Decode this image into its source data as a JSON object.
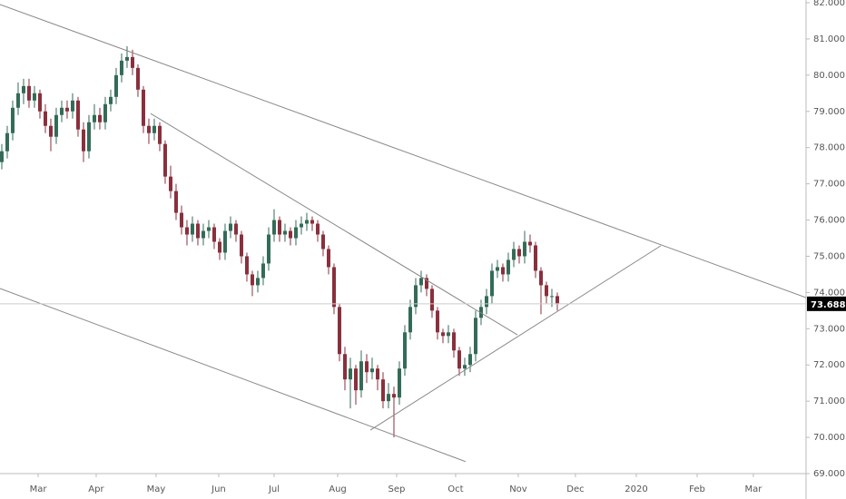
{
  "chart_data": {
    "type": "candlestick",
    "candles": [
      [
        77.6,
        78.1,
        77.4,
        77.9
      ],
      [
        77.9,
        78.6,
        77.7,
        78.4
      ],
      [
        78.4,
        79.3,
        78.2,
        79.1
      ],
      [
        79.1,
        79.8,
        78.9,
        79.5
      ],
      [
        79.5,
        79.9,
        79.2,
        79.7
      ],
      [
        79.7,
        79.9,
        79.1,
        79.3
      ],
      [
        79.3,
        79.7,
        79.1,
        79.5
      ],
      [
        79.5,
        79.6,
        78.8,
        79.0
      ],
      [
        79.0,
        79.2,
        78.4,
        78.6
      ],
      [
        78.6,
        78.8,
        77.9,
        78.3
      ],
      [
        78.3,
        79.1,
        78.1,
        78.9
      ],
      [
        78.9,
        79.3,
        78.7,
        79.1
      ],
      [
        79.1,
        79.3,
        78.8,
        79.0
      ],
      [
        79.0,
        79.5,
        78.8,
        79.3
      ],
      [
        79.3,
        79.4,
        78.3,
        78.5
      ],
      [
        78.5,
        78.7,
        77.6,
        77.9
      ],
      [
        77.9,
        78.9,
        77.7,
        78.7
      ],
      [
        78.7,
        79.2,
        78.5,
        78.9
      ],
      [
        78.9,
        79.1,
        78.5,
        78.7
      ],
      [
        78.7,
        79.4,
        78.5,
        79.2
      ],
      [
        79.2,
        79.6,
        79.0,
        79.4
      ],
      [
        79.4,
        80.2,
        79.2,
        80.0
      ],
      [
        80.0,
        80.6,
        79.8,
        80.4
      ],
      [
        80.4,
        80.8,
        80.2,
        80.5
      ],
      [
        80.5,
        80.7,
        80.0,
        80.2
      ],
      [
        80.2,
        80.3,
        79.4,
        79.6
      ],
      [
        79.6,
        79.7,
        78.4,
        78.6
      ],
      [
        78.6,
        78.8,
        78.1,
        78.4
      ],
      [
        78.4,
        78.8,
        78.2,
        78.6
      ],
      [
        78.6,
        78.7,
        77.9,
        78.1
      ],
      [
        78.1,
        78.2,
        77.0,
        77.2
      ],
      [
        77.2,
        77.5,
        76.6,
        76.8
      ],
      [
        76.8,
        77.0,
        76.0,
        76.2
      ],
      [
        76.2,
        76.4,
        75.6,
        75.8
      ],
      [
        75.8,
        76.0,
        75.3,
        75.6
      ],
      [
        75.6,
        76.1,
        75.4,
        75.9
      ],
      [
        75.9,
        76.0,
        75.3,
        75.5
      ],
      [
        75.5,
        75.9,
        75.3,
        75.7
      ],
      [
        75.7,
        76.0,
        75.5,
        75.8
      ],
      [
        75.8,
        75.9,
        75.2,
        75.4
      ],
      [
        75.4,
        75.5,
        74.9,
        75.1
      ],
      [
        75.1,
        75.9,
        74.9,
        75.7
      ],
      [
        75.7,
        76.1,
        75.5,
        75.9
      ],
      [
        75.9,
        76.0,
        75.4,
        75.6
      ],
      [
        75.6,
        75.7,
        74.8,
        75.0
      ],
      [
        75.0,
        75.1,
        74.3,
        74.5
      ],
      [
        74.5,
        74.6,
        73.9,
        74.2
      ],
      [
        74.2,
        74.6,
        74.0,
        74.4
      ],
      [
        74.4,
        75.0,
        74.2,
        74.8
      ],
      [
        74.8,
        75.8,
        74.6,
        75.6
      ],
      [
        75.6,
        76.3,
        75.4,
        76.0
      ],
      [
        76.0,
        76.1,
        75.4,
        75.6
      ],
      [
        75.6,
        75.9,
        75.4,
        75.7
      ],
      [
        75.7,
        75.8,
        75.3,
        75.5
      ],
      [
        75.5,
        76.0,
        75.3,
        75.8
      ],
      [
        75.8,
        76.1,
        75.6,
        75.9
      ],
      [
        75.9,
        76.2,
        75.7,
        76.0
      ],
      [
        76.0,
        76.1,
        75.7,
        75.9
      ],
      [
        75.9,
        76.0,
        75.4,
        75.6
      ],
      [
        75.6,
        75.7,
        75.0,
        75.2
      ],
      [
        75.2,
        75.3,
        74.5,
        74.7
      ],
      [
        74.7,
        74.8,
        73.4,
        73.6
      ],
      [
        73.6,
        73.7,
        72.1,
        72.3
      ],
      [
        72.3,
        72.5,
        71.3,
        71.6
      ],
      [
        71.6,
        72.2,
        70.8,
        71.9
      ],
      [
        71.9,
        72.0,
        70.9,
        71.3
      ],
      [
        71.3,
        72.4,
        71.1,
        72.1
      ],
      [
        72.1,
        72.3,
        71.5,
        71.8
      ],
      [
        71.8,
        72.2,
        71.6,
        71.9
      ],
      [
        71.9,
        72.0,
        71.3,
        71.6
      ],
      [
        71.6,
        71.8,
        70.8,
        71.0
      ],
      [
        71.0,
        71.5,
        70.8,
        71.2
      ],
      [
        71.2,
        71.4,
        70.0,
        71.1
      ],
      [
        71.1,
        72.1,
        70.9,
        71.9
      ],
      [
        71.9,
        73.1,
        71.7,
        72.9
      ],
      [
        72.9,
        73.8,
        72.7,
        73.6
      ],
      [
        73.6,
        74.4,
        73.4,
        74.2
      ],
      [
        74.2,
        74.6,
        74.0,
        74.4
      ],
      [
        74.4,
        74.5,
        73.9,
        74.1
      ],
      [
        74.1,
        74.2,
        73.3,
        73.5
      ],
      [
        73.5,
        73.6,
        72.7,
        72.9
      ],
      [
        72.9,
        73.0,
        72.6,
        72.8
      ],
      [
        72.8,
        73.1,
        72.6,
        72.9
      ],
      [
        72.9,
        73.0,
        72.2,
        72.4
      ],
      [
        72.4,
        72.5,
        71.7,
        71.9
      ],
      [
        71.9,
        72.2,
        71.7,
        72.0
      ],
      [
        72.0,
        72.5,
        71.8,
        72.3
      ],
      [
        72.3,
        73.5,
        72.1,
        73.3
      ],
      [
        73.3,
        73.8,
        73.1,
        73.6
      ],
      [
        73.6,
        74.1,
        73.4,
        73.9
      ],
      [
        73.9,
        74.8,
        73.7,
        74.6
      ],
      [
        74.6,
        74.9,
        74.4,
        74.7
      ],
      [
        74.7,
        74.8,
        74.3,
        74.5
      ],
      [
        74.5,
        75.1,
        74.3,
        74.9
      ],
      [
        74.9,
        75.4,
        74.7,
        75.2
      ],
      [
        75.2,
        75.3,
        74.8,
        75.0
      ],
      [
        75.0,
        75.7,
        74.8,
        75.4
      ],
      [
        75.4,
        75.6,
        75.1,
        75.3
      ],
      [
        75.3,
        75.4,
        74.4,
        74.6
      ],
      [
        74.6,
        74.7,
        73.4,
        74.2
      ],
      [
        74.2,
        74.3,
        73.7,
        73.9
      ],
      [
        73.9,
        74.1,
        73.6,
        73.9
      ],
      [
        73.9,
        74.0,
        73.5,
        73.7
      ]
    ],
    "up_color": "#336b57",
    "down_color": "#8a2f3c",
    "trendlines": [
      [
        -0.33,
        81.95,
        147.67,
        73.86
      ],
      [
        27.33,
        78.94,
        94.67,
        72.83
      ],
      [
        -0.33,
        74.11,
        85.17,
        69.33
      ],
      [
        67.67,
        70.2,
        121,
        75.29
      ]
    ],
    "last_price": 73.688,
    "xlim": [
      -0.33,
      147.67
    ],
    "xticks": [
      {
        "value": 6.67,
        "label": "Mar"
      },
      {
        "value": 17.33,
        "label": "Apr"
      },
      {
        "value": 28.33,
        "label": "May"
      },
      {
        "value": 39.83,
        "label": "Jun"
      },
      {
        "value": 50,
        "label": "Jul"
      },
      {
        "value": 61.67,
        "label": "Aug"
      },
      {
        "value": 72.5,
        "label": "Sep"
      },
      {
        "value": 83.33,
        "label": "Oct"
      },
      {
        "value": 94.83,
        "label": "Nov"
      },
      {
        "value": 105.33,
        "label": "Dec"
      },
      {
        "value": 116.5,
        "label": "2020"
      },
      {
        "value": 127.67,
        "label": "Feb"
      },
      {
        "value": 138,
        "label": "Mar"
      }
    ],
    "ylim": [
      69,
      82
    ],
    "yticks": [
      {
        "value": 69,
        "label": "69.000"
      },
      {
        "value": 70,
        "label": "70.000"
      },
      {
        "value": 71,
        "label": "71.000"
      },
      {
        "value": 72,
        "label": "72.000"
      },
      {
        "value": 73,
        "label": "73.000"
      },
      {
        "value": 74,
        "label": "74.000"
      },
      {
        "value": 75,
        "label": "75.000"
      },
      {
        "value": 76,
        "label": "76.000"
      },
      {
        "value": 77,
        "label": "77.000"
      },
      {
        "value": 78,
        "label": "78.000"
      },
      {
        "value": 79,
        "label": "79.000"
      },
      {
        "value": 80,
        "label": "80.000"
      },
      {
        "value": 81,
        "label": "81.000"
      },
      {
        "value": 82,
        "label": "82.000"
      }
    ]
  }
}
